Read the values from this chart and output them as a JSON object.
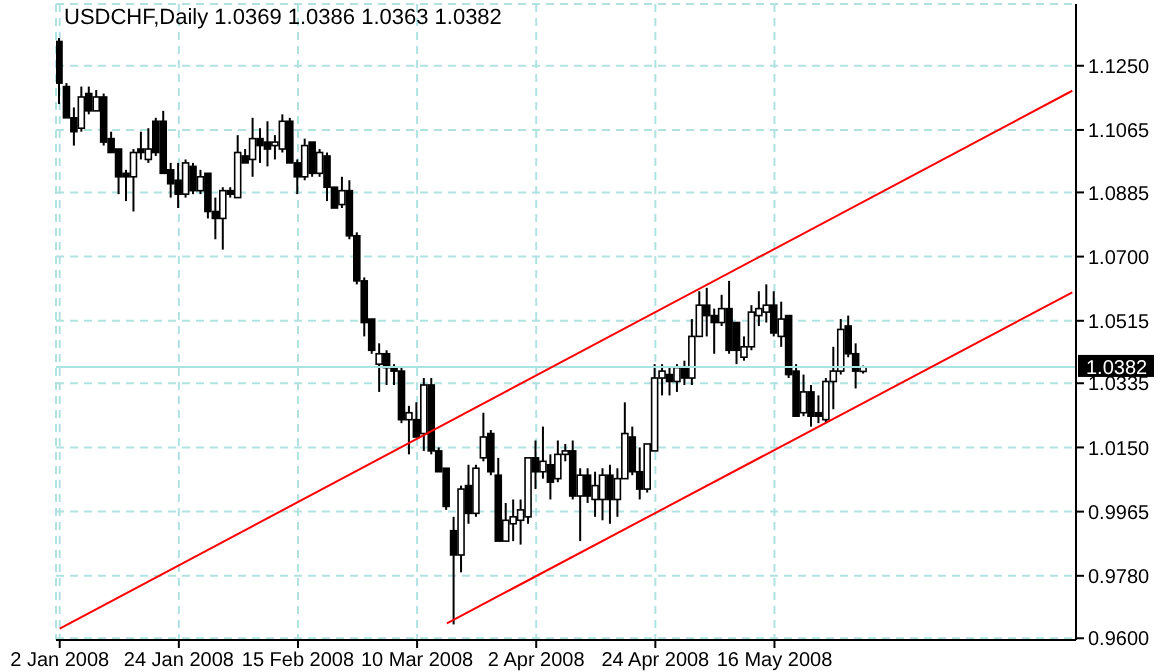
{
  "chart_data": {
    "type": "candlestick",
    "title": "USDCHF,Daily 1.0369 1.0386 1.0363 1.0382",
    "categories": [
      "2 Jan 2008",
      null,
      null,
      null,
      null,
      null,
      null,
      null,
      null,
      null,
      null,
      null,
      null,
      null,
      null,
      null,
      "24 Jan 2008",
      null,
      null,
      null,
      null,
      null,
      null,
      null,
      null,
      null,
      null,
      null,
      null,
      null,
      null,
      null,
      "15 Feb 2008",
      null,
      null,
      null,
      null,
      null,
      null,
      null,
      null,
      null,
      null,
      null,
      null,
      null,
      null,
      null,
      "10 Mar 2008",
      null,
      null,
      null,
      null,
      null,
      null,
      null,
      null,
      null,
      null,
      null,
      null,
      null,
      null,
      null,
      "2 Apr 2008",
      null,
      null,
      null,
      null,
      null,
      null,
      null,
      null,
      null,
      null,
      null,
      null,
      null,
      null,
      null,
      "24 Apr 2008",
      null,
      null,
      null,
      null,
      null,
      null,
      null,
      null,
      null,
      null,
      null,
      null,
      null,
      null,
      null,
      "16 May 2008",
      null,
      null,
      null,
      null,
      null,
      null,
      null,
      null,
      null,
      null,
      null,
      null,
      null,
      null,
      null,
      null,
      null,
      null,
      null,
      null,
      null,
      null,
      null,
      null,
      null,
      null,
      null,
      null,
      null,
      null,
      null,
      null,
      null,
      null,
      null,
      null,
      null,
      null,
      null,
      null
    ],
    "ohlc": [
      [
        1.132,
        1.133,
        1.114,
        1.12
      ],
      [
        1.119,
        1.12,
        1.11,
        1.11
      ],
      [
        1.11,
        1.113,
        1.102,
        1.106
      ],
      [
        1.107,
        1.119,
        1.106,
        1.116
      ],
      [
        1.117,
        1.119,
        1.111,
        1.112
      ],
      [
        1.112,
        1.118,
        1.112,
        1.116
      ],
      [
        1.116,
        1.117,
        1.102,
        1.103
      ],
      [
        1.104,
        1.106,
        1.1,
        1.1
      ],
      [
        1.101,
        1.101,
        1.088,
        1.093
      ],
      [
        1.094,
        1.095,
        1.086,
        1.093
      ],
      [
        1.093,
        1.101,
        1.083,
        1.1
      ],
      [
        1.101,
        1.106,
        1.098,
        1.1
      ],
      [
        1.098,
        1.107,
        1.097,
        1.101
      ],
      [
        1.109,
        1.11,
        1.099,
        1.1
      ],
      [
        1.109,
        1.112,
        1.094,
        1.094
      ],
      [
        1.095,
        1.097,
        1.087,
        1.091
      ],
      [
        1.092,
        1.097,
        1.084,
        1.088
      ],
      [
        1.088,
        1.098,
        1.087,
        1.097
      ],
      [
        1.096,
        1.097,
        1.088,
        1.089
      ],
      [
        1.089,
        1.095,
        1.088,
        1.093
      ],
      [
        1.094,
        1.094,
        1.081,
        1.083
      ],
      [
        1.083,
        1.087,
        1.075,
        1.081
      ],
      [
        1.081,
        1.09,
        1.072,
        1.089
      ],
      [
        1.089,
        1.09,
        1.087,
        1.088
      ],
      [
        1.087,
        1.105,
        1.087,
        1.1
      ],
      [
        1.099,
        1.101,
        1.097,
        1.097
      ],
      [
        1.098,
        1.11,
        1.093,
        1.104
      ],
      [
        1.104,
        1.107,
        1.097,
        1.102
      ],
      [
        1.103,
        1.109,
        1.096,
        1.101
      ],
      [
        1.102,
        1.105,
        1.098,
        1.103
      ],
      [
        1.101,
        1.111,
        1.1,
        1.109
      ],
      [
        1.109,
        1.11,
        1.097,
        1.097
      ],
      [
        1.097,
        1.098,
        1.088,
        1.093
      ],
      [
        1.093,
        1.104,
        1.092,
        1.102
      ],
      [
        1.103,
        1.103,
        1.093,
        1.094
      ],
      [
        1.094,
        1.101,
        1.093,
        1.1
      ],
      [
        1.099,
        1.1,
        1.086,
        1.09
      ],
      [
        1.09,
        1.09,
        1.084,
        1.084
      ],
      [
        1.085,
        1.093,
        1.084,
        1.089
      ],
      [
        1.089,
        1.092,
        1.075,
        1.076
      ],
      [
        1.076,
        1.077,
        1.062,
        1.063
      ],
      [
        1.063,
        1.064,
        1.047,
        1.051
      ],
      [
        1.052,
        1.052,
        1.042,
        1.043
      ],
      [
        1.039,
        1.045,
        1.031,
        1.042
      ],
      [
        1.042,
        1.043,
        1.033,
        1.038
      ],
      [
        1.038,
        1.039,
        1.033,
        1.037
      ],
      [
        1.037,
        1.038,
        1.022,
        1.023
      ],
      [
        1.023,
        1.027,
        1.013,
        1.025
      ],
      [
        1.023,
        1.028,
        1.018,
        1.018
      ],
      [
        1.019,
        1.035,
        1.014,
        1.033
      ],
      [
        1.033,
        1.035,
        1.013,
        1.014
      ],
      [
        1.014,
        1.015,
        1.008,
        1.008
      ],
      [
        1.009,
        1.009,
        0.997,
        0.998
      ],
      [
        0.991,
        0.995,
        0.964,
        0.984
      ],
      [
        0.984,
        1.004,
        0.979,
        1.003
      ],
      [
        1.004,
        1.01,
        0.993,
        0.996
      ],
      [
        0.996,
        1.01,
        0.995,
        1.009
      ],
      [
        1.012,
        1.025,
        1.011,
        1.018
      ],
      [
        1.019,
        1.02,
        1.007,
        1.008
      ],
      [
        1.007,
        1.012,
        0.988,
        0.988
      ],
      [
        0.988,
        0.999,
        0.988,
        0.994
      ],
      [
        0.993,
        1.0,
        0.988,
        0.995
      ],
      [
        0.994,
        1.0,
        0.987,
        0.997
      ],
      [
        0.995,
        1.012,
        0.993,
        1.012
      ],
      [
        1.012,
        1.017,
        1.003,
        1.008
      ],
      [
        1.008,
        1.021,
        1.006,
        1.011
      ],
      [
        1.01,
        1.013,
        1.0,
        1.005
      ],
      [
        1.006,
        1.017,
        1.005,
        1.013
      ],
      [
        1.013,
        1.016,
        1.011,
        1.014
      ],
      [
        1.014,
        1.017,
        1.0,
        1.001
      ],
      [
        1.001,
        1.009,
        0.988,
        1.007
      ],
      [
        1.007,
        1.009,
        0.999,
        1.001
      ],
      [
        1.0,
        1.008,
        0.995,
        1.004
      ],
      [
        1.0,
        1.009,
        0.994,
        1.007
      ],
      [
        1.007,
        1.01,
        0.993,
        1.0
      ],
      [
        1.0,
        1.009,
        0.995,
        1.006
      ],
      [
        1.006,
        1.028,
        1.006,
        1.019
      ],
      [
        1.018,
        1.021,
        1.007,
        1.008
      ],
      [
        1.008,
        1.015,
        1.0,
        1.003
      ],
      [
        1.003,
        1.016,
        1.002,
        1.016
      ],
      [
        1.014,
        1.039,
        1.014,
        1.035
      ],
      [
        1.035,
        1.039,
        1.03,
        1.037
      ],
      [
        1.036,
        1.038,
        1.03,
        1.034
      ],
      [
        1.034,
        1.039,
        1.031,
        1.038
      ],
      [
        1.038,
        1.04,
        1.033,
        1.035
      ],
      [
        1.035,
        1.052,
        1.033,
        1.047
      ],
      [
        1.047,
        1.06,
        1.047,
        1.056
      ],
      [
        1.056,
        1.061,
        1.047,
        1.053
      ],
      [
        1.053,
        1.055,
        1.042,
        1.051
      ],
      [
        1.051,
        1.059,
        1.05,
        1.055
      ],
      [
        1.055,
        1.063,
        1.042,
        1.043
      ],
      [
        1.051,
        1.051,
        1.039,
        1.043
      ],
      [
        1.041,
        1.047,
        1.04,
        1.044
      ],
      [
        1.044,
        1.056,
        1.043,
        1.054
      ],
      [
        1.053,
        1.06,
        1.05,
        1.055
      ],
      [
        1.054,
        1.062,
        1.051,
        1.056
      ],
      [
        1.056,
        1.06,
        1.047,
        1.048
      ],
      [
        1.047,
        1.057,
        1.044,
        1.052
      ],
      [
        1.053,
        1.053,
        1.035,
        1.036
      ],
      [
        1.037,
        1.039,
        1.024,
        1.024
      ],
      [
        1.025,
        1.036,
        1.024,
        1.031
      ],
      [
        1.031,
        1.033,
        1.021,
        1.024
      ],
      [
        1.025,
        1.03,
        1.022,
        1.024
      ],
      [
        1.023,
        1.035,
        1.022,
        1.034
      ],
      [
        1.034,
        1.044,
        1.026,
        1.037
      ],
      [
        1.037,
        1.052,
        1.036,
        1.049
      ],
      [
        1.05,
        1.053,
        1.041,
        1.042
      ],
      [
        1.042,
        1.045,
        1.032,
        1.037
      ],
      [
        1.0369,
        1.0386,
        1.0363,
        1.0382
      ],
      null,
      null,
      null,
      null,
      null,
      null,
      null,
      null,
      null,
      null,
      null,
      null,
      null,
      null,
      null,
      null,
      null,
      null,
      null,
      null,
      null,
      null,
      null,
      null,
      null,
      null,
      null,
      null
    ],
    "color": "#000000",
    "ylim": [
      0.9595,
      1.1428
    ],
    "yticks": [
      {
        "value": 0.96,
        "label": "0.9600"
      },
      {
        "value": 0.978,
        "label": "0.9780"
      },
      0.9965,
      {
        "value": 1.015,
        "label": "1.0150"
      },
      1.0335,
      1.0515,
      {
        "value": 1.07,
        "label": "1.0700"
      },
      1.0885,
      1.1065,
      {
        "value": 1.125,
        "label": "1.1250"
      }
    ],
    "grid": true,
    "ref_lines": [
      {
        "axis": "y",
        "value": 1.0382,
        "label": "1.0382",
        "color": "#a8e4e4"
      }
    ],
    "series": [
      {
        "type": "line",
        "color": "#ff0000",
        "values": [
          0.9628,
          null,
          null,
          null,
          null,
          null,
          null,
          null,
          null,
          null,
          null,
          null,
          null,
          null,
          null,
          null,
          null,
          null,
          null,
          null,
          null,
          null,
          null,
          null,
          null,
          null,
          null,
          null,
          null,
          null,
          null,
          null,
          null,
          null,
          null,
          null,
          null,
          null,
          null,
          null,
          null,
          null,
          null,
          null,
          null,
          null,
          null,
          null,
          null,
          null,
          null,
          null,
          null,
          null,
          null,
          null,
          null,
          null,
          null,
          null,
          null,
          null,
          null,
          null,
          null,
          null,
          null,
          null,
          null,
          null,
          null,
          null,
          null,
          null,
          null,
          null,
          null,
          null,
          null,
          null,
          null,
          null,
          null,
          null,
          null,
          null,
          null,
          null,
          null,
          null,
          null,
          null,
          null,
          null,
          null,
          null,
          null,
          null,
          null,
          null,
          null,
          null,
          null,
          null,
          null,
          null,
          null,
          null,
          null,
          null,
          null,
          null,
          null,
          null,
          null,
          null,
          null,
          null,
          null,
          null,
          null,
          null,
          null,
          null,
          null,
          null,
          null,
          null,
          null,
          null,
          null,
          null,
          null,
          null,
          null,
          null,
          1.1178
        ]
      },
      {
        "type": "line",
        "color": "#ff0000",
        "values": [
          null,
          null,
          null,
          null,
          null,
          null,
          null,
          null,
          null,
          null,
          null,
          null,
          null,
          null,
          null,
          null,
          null,
          null,
          null,
          null,
          null,
          null,
          null,
          null,
          null,
          null,
          null,
          null,
          null,
          null,
          null,
          null,
          null,
          null,
          null,
          null,
          null,
          null,
          null,
          null,
          null,
          null,
          null,
          null,
          null,
          null,
          null,
          null,
          null,
          null,
          null,
          null,
          0.9643,
          null,
          null,
          null,
          null,
          null,
          null,
          null,
          null,
          null,
          null,
          null,
          null,
          null,
          null,
          null,
          null,
          null,
          null,
          null,
          null,
          null,
          null,
          null,
          null,
          null,
          null,
          null,
          null,
          null,
          null,
          null,
          null,
          null,
          null,
          null,
          null,
          null,
          null,
          null,
          null,
          null,
          null,
          null,
          null,
          null,
          null,
          null,
          null,
          null,
          null,
          null,
          null,
          null,
          null,
          null,
          null,
          null,
          null,
          null,
          null,
          null,
          null,
          null,
          null,
          null,
          null,
          null,
          null,
          null,
          null,
          null,
          null,
          null,
          null,
          null,
          null,
          null,
          null,
          null,
          null,
          null,
          null,
          null,
          1.0597
        ]
      }
    ]
  }
}
